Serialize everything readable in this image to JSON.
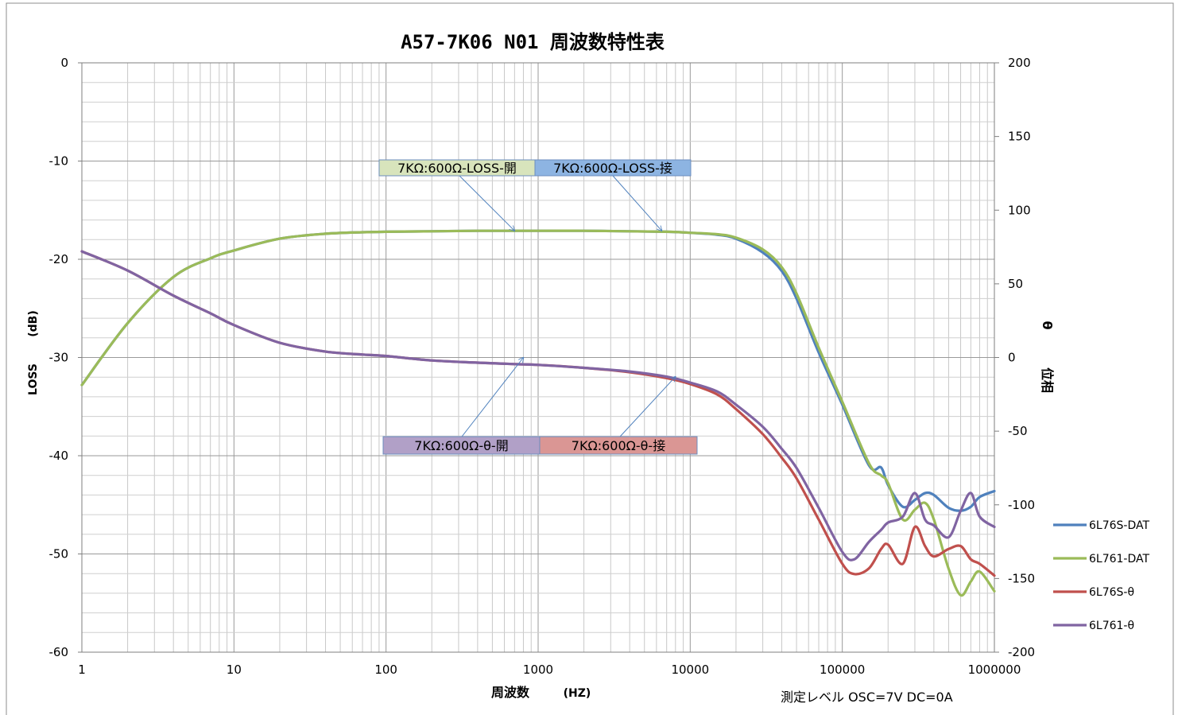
{
  "chart_data": {
    "type": "line",
    "title": "A57-7K06 N01 周波数特性表",
    "xlabel": "周波数",
    "xlabel_unit": "(HZ)",
    "ylabel": "LOSS",
    "ylabel_unit": "(dB)",
    "y2label": "位相",
    "y2label_unit": "θ",
    "x_scale": "log",
    "xlim": [
      1,
      1000000
    ],
    "ylim": [
      -60,
      0
    ],
    "y2lim": [
      -200,
      200
    ],
    "x_ticks": [
      "1",
      "10",
      "100",
      "1000",
      "10000",
      "100000",
      "1000000"
    ],
    "y_ticks": [
      "0",
      "-10",
      "-20",
      "-30",
      "-40",
      "-50",
      "-60"
    ],
    "y2_ticks": [
      "200",
      "150",
      "100",
      "50",
      "0",
      "-50",
      "-100",
      "-150",
      "-200"
    ],
    "grid": true,
    "legend_position": "right",
    "note": "測定レベル OSC=7V DC=0A",
    "annotations": [
      {
        "text": "7KΩ:600Ω-LOSS-開",
        "fill": "#d8e4bc",
        "target": [
          700,
          -17.1
        ]
      },
      {
        "text": "7KΩ:600Ω-LOSS-接",
        "fill": "#8db4e2",
        "target": [
          6500,
          -17.1
        ]
      },
      {
        "text": "7KΩ:600Ω-θ-開",
        "fill": "#b1a0c7",
        "target": [
          800,
          0
        ],
        "axis": "y2"
      },
      {
        "text": "7KΩ:600Ω-θ-接",
        "fill": "#da9694",
        "target": [
          8000,
          -13
        ],
        "axis": "y2"
      }
    ],
    "series": [
      {
        "name": "6L76S-DAT",
        "color": "#4f81bd",
        "axis": "y",
        "x": [
          1,
          2,
          4,
          7,
          10,
          20,
          40,
          70,
          100,
          200,
          400,
          700,
          1000,
          2000,
          4000,
          7000,
          10000,
          15000,
          20000,
          30000,
          40000,
          50000,
          70000,
          100000,
          150000,
          180000,
          200000,
          250000,
          300000,
          350000,
          400000,
          500000,
          600000,
          700000,
          800000,
          1000000
        ],
        "values": [
          -32.8,
          -26.5,
          -21.8,
          -19.9,
          -19.1,
          -17.9,
          -17.4,
          -17.25,
          -17.2,
          -17.15,
          -17.1,
          -17.1,
          -17.1,
          -17.1,
          -17.15,
          -17.2,
          -17.3,
          -17.5,
          -17.9,
          -19.3,
          -21.2,
          -24.0,
          -29.5,
          -34.8,
          -41.0,
          -41.2,
          -43.0,
          -45.2,
          -44.5,
          -43.8,
          -44.0,
          -45.3,
          -45.6,
          -45.2,
          -44.2,
          -43.6
        ]
      },
      {
        "name": "6L761-DAT",
        "color": "#9bbb59",
        "axis": "y",
        "x": [
          1,
          2,
          4,
          7,
          10,
          20,
          40,
          70,
          100,
          200,
          400,
          700,
          1000,
          2000,
          4000,
          7000,
          10000,
          15000,
          20000,
          30000,
          40000,
          50000,
          70000,
          100000,
          150000,
          180000,
          200000,
          250000,
          300000,
          350000,
          400000,
          500000,
          600000,
          700000,
          800000,
          1000000
        ],
        "values": [
          -32.8,
          -26.5,
          -21.8,
          -19.9,
          -19.1,
          -17.9,
          -17.4,
          -17.25,
          -17.2,
          -17.15,
          -17.1,
          -17.1,
          -17.1,
          -17.1,
          -17.15,
          -17.2,
          -17.3,
          -17.45,
          -17.8,
          -19.0,
          -20.8,
          -23.5,
          -29.0,
          -34.5,
          -40.8,
          -42.0,
          -42.8,
          -46.5,
          -45.5,
          -44.8,
          -46.5,
          -51.5,
          -54.2,
          -52.8,
          -51.8,
          -53.8
        ]
      },
      {
        "name": "6L76S-θ",
        "color": "#c0504d",
        "axis": "y2",
        "x": [
          1,
          2,
          4,
          7,
          10,
          20,
          40,
          70,
          100,
          200,
          400,
          700,
          1000,
          2000,
          4000,
          7000,
          10000,
          15000,
          20000,
          30000,
          40000,
          50000,
          70000,
          100000,
          120000,
          150000,
          180000,
          200000,
          250000,
          300000,
          350000,
          400000,
          500000,
          600000,
          700000,
          800000,
          1000000
        ],
        "values": [
          72,
          59,
          42,
          30,
          22,
          10,
          4,
          2,
          1,
          -2,
          -3.5,
          -4.5,
          -5,
          -7,
          -10,
          -14,
          -18,
          -25,
          -35,
          -52,
          -68,
          -82,
          -110,
          -140,
          -147,
          -143,
          -130,
          -127,
          -140,
          -115,
          -128,
          -135,
          -130,
          -128,
          -137,
          -140,
          -148
        ]
      },
      {
        "name": "6L761-θ",
        "color": "#8064a2",
        "axis": "y2",
        "x": [
          1,
          2,
          4,
          7,
          10,
          20,
          40,
          70,
          100,
          200,
          400,
          700,
          1000,
          2000,
          4000,
          7000,
          10000,
          15000,
          20000,
          30000,
          40000,
          50000,
          70000,
          100000,
          120000,
          150000,
          180000,
          200000,
          250000,
          300000,
          350000,
          400000,
          500000,
          600000,
          700000,
          800000,
          1000000
        ],
        "values": [
          72,
          59,
          42,
          30,
          22,
          10,
          4,
          2,
          1,
          -2,
          -3.5,
          -4.5,
          -5,
          -7,
          -9.5,
          -13,
          -17,
          -23,
          -32,
          -47,
          -62,
          -75,
          -102,
          -132,
          -137,
          -125,
          -117,
          -112,
          -108,
          -92,
          -110,
          -114,
          -122,
          -104,
          -92,
          -108,
          -115
        ]
      }
    ]
  }
}
